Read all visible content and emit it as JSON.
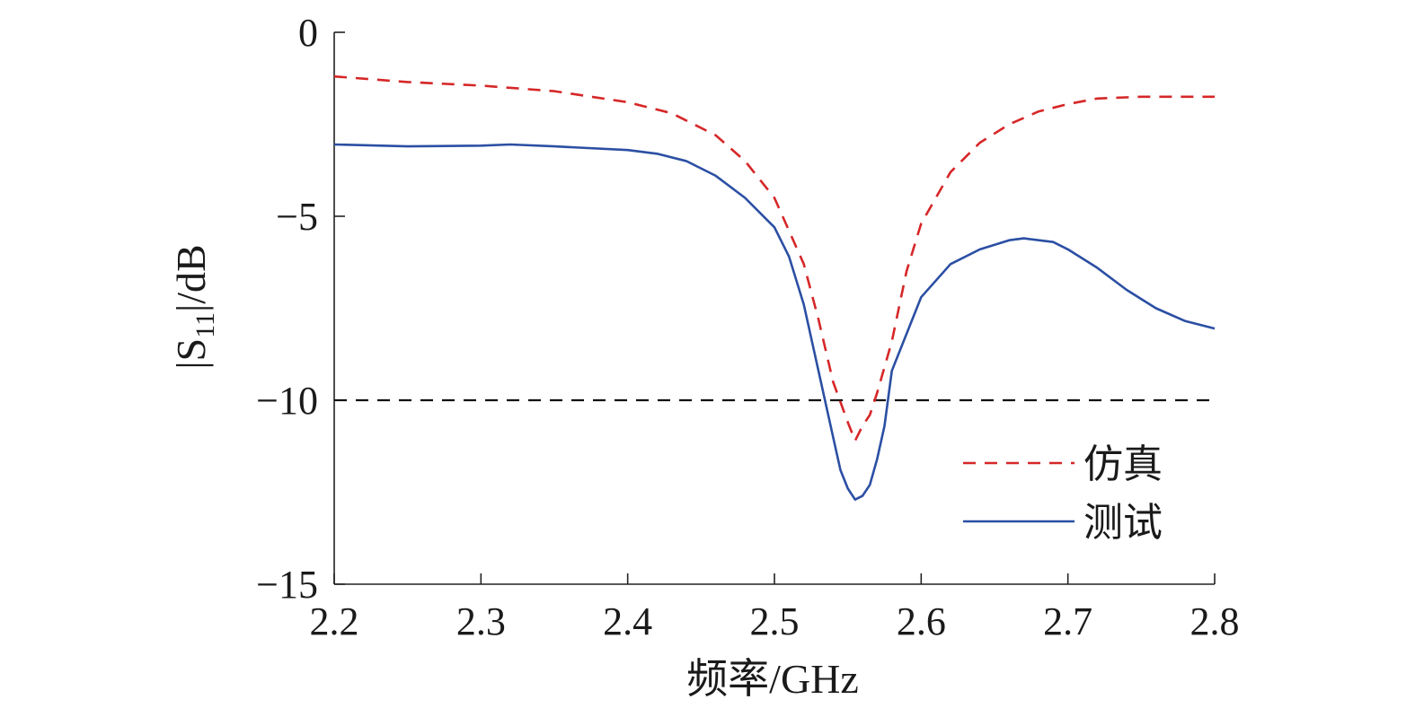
{
  "chart_data": {
    "type": "line",
    "xlabel": "频率/GHz",
    "ylabel_prefix": "|S",
    "ylabel_sub": "11",
    "ylabel_suffix": "|/dB",
    "xlim": [
      2.2,
      2.8
    ],
    "ylim": [
      -15,
      0
    ],
    "xticks": [
      2.2,
      2.3,
      2.4,
      2.5,
      2.6,
      2.7,
      2.8
    ],
    "xtick_labels": [
      "2.2",
      "2.3",
      "2.4",
      "2.5",
      "2.6",
      "2.7",
      "2.8"
    ],
    "yticks": [
      0,
      -5,
      -10,
      -15
    ],
    "ytick_labels": [
      "0",
      "−5",
      "−10",
      "−15"
    ],
    "grid": false,
    "legend_position": "bottom-right",
    "series": [
      {
        "name": "仿真",
        "color": "#d62728",
        "style": "dashed",
        "x": [
          2.2,
          2.25,
          2.3,
          2.35,
          2.4,
          2.43,
          2.46,
          2.48,
          2.5,
          2.52,
          2.53,
          2.54,
          2.55,
          2.555,
          2.56,
          2.565,
          2.57,
          2.58,
          2.59,
          2.6,
          2.62,
          2.64,
          2.66,
          2.68,
          2.7,
          2.72,
          2.75,
          2.8
        ],
        "y": [
          -1.2,
          -1.35,
          -1.45,
          -1.6,
          -1.9,
          -2.2,
          -2.8,
          -3.5,
          -4.5,
          -6.3,
          -7.8,
          -9.5,
          -10.6,
          -11.1,
          -10.7,
          -10.4,
          -9.8,
          -8.4,
          -6.5,
          -5.2,
          -3.8,
          -3.0,
          -2.5,
          -2.15,
          -1.95,
          -1.8,
          -1.75,
          -1.75
        ]
      },
      {
        "name": "测试",
        "color": "#2b4fa3",
        "style": "solid",
        "x": [
          2.2,
          2.25,
          2.3,
          2.32,
          2.35,
          2.4,
          2.42,
          2.44,
          2.46,
          2.48,
          2.5,
          2.51,
          2.52,
          2.53,
          2.54,
          2.545,
          2.55,
          2.555,
          2.56,
          2.565,
          2.57,
          2.575,
          2.58,
          2.59,
          2.6,
          2.62,
          2.64,
          2.66,
          2.67,
          2.69,
          2.7,
          2.72,
          2.74,
          2.76,
          2.78,
          2.8
        ],
        "y": [
          -3.05,
          -3.1,
          -3.08,
          -3.05,
          -3.1,
          -3.2,
          -3.3,
          -3.5,
          -3.9,
          -4.5,
          -5.3,
          -6.1,
          -7.4,
          -9.2,
          -11.0,
          -11.9,
          -12.4,
          -12.7,
          -12.6,
          -12.3,
          -11.6,
          -10.7,
          -9.2,
          -8.2,
          -7.2,
          -6.3,
          -5.9,
          -5.65,
          -5.6,
          -5.7,
          -5.9,
          -6.4,
          -7.0,
          -7.5,
          -7.85,
          -8.05
        ]
      }
    ],
    "reference_line": {
      "y": -10,
      "color": "#111111",
      "style": "dashed"
    }
  }
}
